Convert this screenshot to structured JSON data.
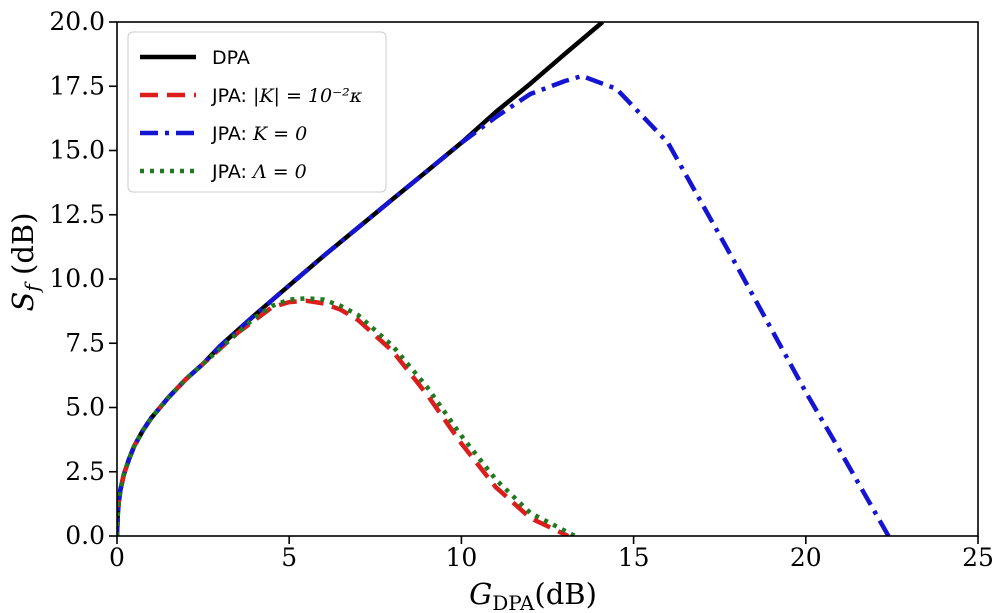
{
  "chart_data": {
    "type": "line",
    "title": "",
    "xlabel": "G_DPA(dB)",
    "xlabel_main": "G",
    "xlabel_sub": "DPA",
    "xlabel_unit": "(dB)",
    "ylabel": "S_f (dB)",
    "ylabel_main": "S",
    "ylabel_sub": "f",
    "ylabel_unit": " (dB)",
    "xlim": [
      0,
      25
    ],
    "ylim": [
      0,
      20
    ],
    "xticks": [
      0,
      5,
      10,
      15,
      20,
      25
    ],
    "yticks": [
      0,
      2.5,
      5,
      7.5,
      10,
      12.5,
      15,
      17.5,
      20
    ],
    "xtick_labels": [
      "0",
      "5",
      "10",
      "15",
      "20",
      "25"
    ],
    "ytick_labels": [
      "0.0",
      "2.5",
      "5.0",
      "7.5",
      "10.0",
      "12.5",
      "15.0",
      "17.5",
      "20.0"
    ],
    "grid": false,
    "legend_position": "top-left",
    "series": [
      {
        "name": "DPA",
        "label_prefix": "DPA",
        "label_math": "",
        "color": "#000000",
        "style": "solid",
        "x": [
          0,
          0.02,
          0.05,
          0.1,
          0.2,
          0.35,
          0.5,
          0.75,
          1,
          1.5,
          2,
          2.5,
          3,
          4,
          5,
          6,
          7,
          8,
          9,
          10,
          11,
          12,
          13,
          14.1
        ],
        "y": [
          0,
          0.8,
          1.3,
          1.8,
          2.4,
          3.0,
          3.5,
          4.1,
          4.6,
          5.4,
          6.1,
          6.7,
          7.4,
          8.6,
          9.75,
          10.9,
          12.0,
          13.1,
          14.2,
          15.3,
          16.5,
          17.6,
          18.75,
          20.0
        ]
      },
      {
        "name": "JPA: |K| = 10^-2 κ",
        "label_prefix": "JPA: ",
        "label_math": "|K| = 10⁻²κ",
        "color": "#dd1c1c",
        "style": "dashed",
        "x": [
          0,
          0.02,
          0.05,
          0.1,
          0.2,
          0.35,
          0.5,
          0.75,
          1,
          1.5,
          2,
          2.5,
          3,
          3.5,
          4,
          4.5,
          5,
          5.5,
          6,
          6.5,
          7,
          8,
          9,
          10,
          11,
          12,
          13.1
        ],
        "y": [
          0,
          0.8,
          1.3,
          1.8,
          2.4,
          3.0,
          3.5,
          4.1,
          4.6,
          5.4,
          6.1,
          6.7,
          7.3,
          7.9,
          8.4,
          8.9,
          9.1,
          9.15,
          9.05,
          8.8,
          8.4,
          7.2,
          5.5,
          3.6,
          1.9,
          0.7,
          0.0
        ]
      },
      {
        "name": "JPA: K = 0",
        "label_prefix": "JPA: ",
        "label_math": "K = 0",
        "color": "#1414d2",
        "style": "dashdot",
        "x": [
          0,
          0.02,
          0.05,
          0.1,
          0.2,
          0.35,
          0.5,
          0.75,
          1,
          1.5,
          2,
          2.5,
          3,
          4,
          5,
          6,
          7,
          8,
          9,
          10,
          11,
          12,
          13,
          13.5,
          14.5,
          16,
          18,
          20,
          21,
          22.4
        ],
        "y": [
          0,
          0.8,
          1.3,
          1.8,
          2.4,
          3.0,
          3.5,
          4.1,
          4.6,
          5.4,
          6.1,
          6.7,
          7.4,
          8.6,
          9.75,
          10.9,
          12.0,
          13.1,
          14.2,
          15.3,
          16.3,
          17.2,
          17.7,
          17.9,
          17.4,
          15.3,
          10.5,
          5.6,
          3.3,
          0.0
        ]
      },
      {
        "name": "JPA: Λ = 0",
        "label_prefix": "JPA: ",
        "label_math": "Λ = 0",
        "color": "#1f7a1f",
        "style": "dotted",
        "x": [
          0,
          0.02,
          0.05,
          0.1,
          0.2,
          0.35,
          0.5,
          0.75,
          1,
          1.5,
          2,
          2.5,
          3,
          3.5,
          4,
          4.5,
          5,
          5.5,
          6,
          6.5,
          7,
          8,
          9,
          10,
          11,
          12,
          13.3
        ],
        "y": [
          0,
          0.8,
          1.3,
          1.8,
          2.4,
          3.0,
          3.5,
          4.1,
          4.6,
          5.4,
          6.1,
          6.7,
          7.3,
          7.9,
          8.5,
          8.95,
          9.2,
          9.25,
          9.2,
          8.95,
          8.6,
          7.4,
          5.8,
          3.9,
          2.2,
          0.9,
          0.0
        ]
      }
    ]
  }
}
